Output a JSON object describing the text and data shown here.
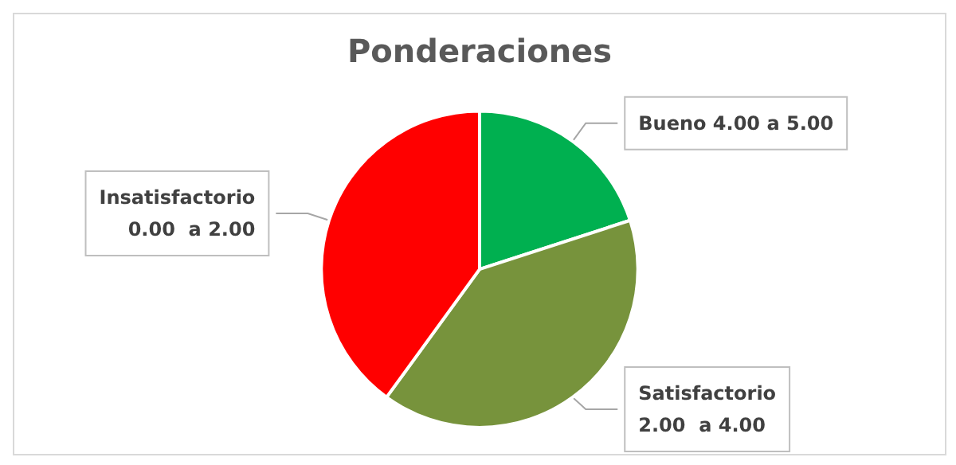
{
  "chart_data": {
    "type": "pie",
    "title": "Ponderaciones",
    "categories": [
      "Bueno 4.00 a 5.00",
      "Satisfactorio\n2.00  a 4.00",
      "Insatisfactorio\n0.00  a 2.00"
    ],
    "values": [
      20,
      40,
      40
    ],
    "colors": [
      "#00b050",
      "#77933c",
      "#ff0000"
    ],
    "legend": false
  }
}
